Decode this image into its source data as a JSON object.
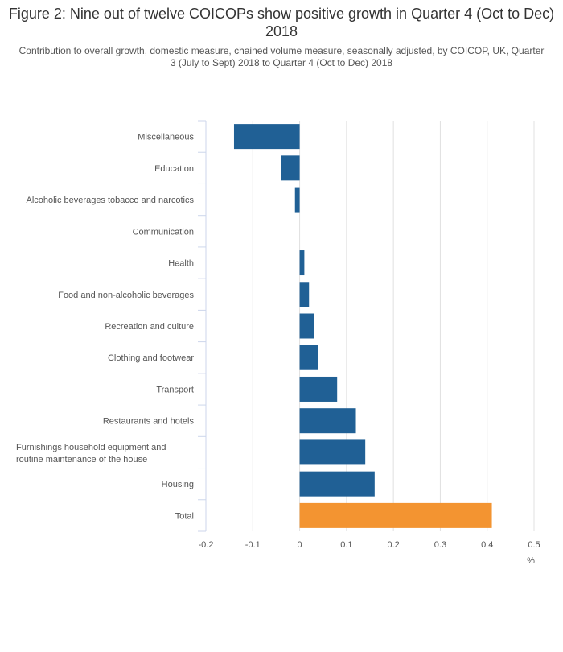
{
  "chart_data": {
    "type": "bar",
    "orientation": "horizontal",
    "title": "Figure 2: Nine out of twelve COICOPs show positive growth in Quarter 4 (Oct to Dec) 2018",
    "subtitle": "Contribution to overall growth, domestic measure, chained volume measure, seasonally adjusted, by COICOP, UK, Quarter 3 (July to Sept) 2018 to Quarter 4 (Oct to Dec) 2018",
    "categories": [
      "Miscellaneous",
      "Education",
      "Alcoholic beverages tobacco and narcotics",
      "Communication",
      "Health",
      "Food and non-alcoholic beverages",
      "Recreation and culture",
      "Clothing and footwear",
      "Transport",
      "Restaurants and hotels",
      "Furnishings household equipment and routine maintenance of the house",
      "Housing",
      "Total"
    ],
    "values": [
      -0.14,
      -0.04,
      -0.01,
      0,
      0.01,
      0.02,
      0.03,
      0.04,
      0.08,
      0.12,
      0.14,
      0.16,
      0.41
    ],
    "colors": [
      "#206095",
      "#206095",
      "#206095",
      "#206095",
      "#206095",
      "#206095",
      "#206095",
      "#206095",
      "#206095",
      "#206095",
      "#206095",
      "#206095",
      "#F39431"
    ],
    "xlabel": "%",
    "ylabel": "",
    "xlim": [
      -0.2,
      0.5
    ],
    "xticks": [
      "-0.2",
      "-0.1",
      "0",
      "0.1",
      "0.2",
      "0.3",
      "0.4",
      "0.5"
    ],
    "grid": true
  }
}
